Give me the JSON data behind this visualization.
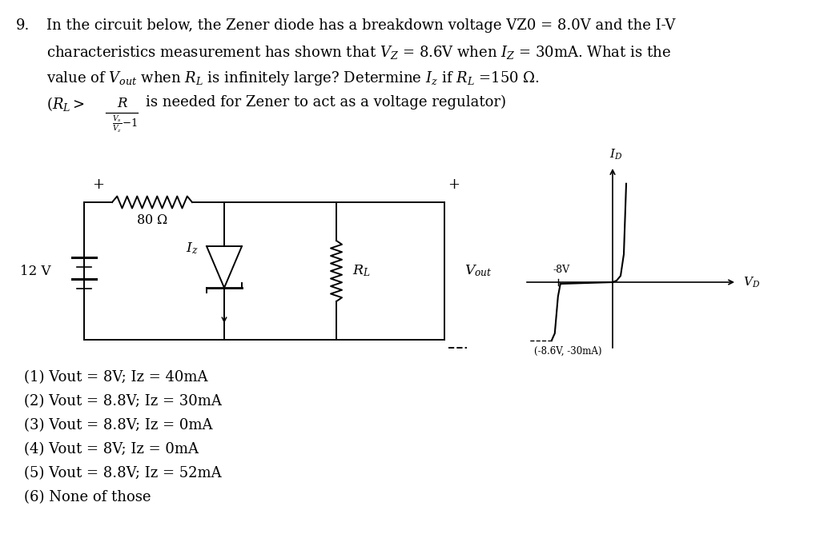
{
  "bg_color": "#ffffff",
  "fig_width": 10.24,
  "fig_height": 6.83,
  "answers": [
    "(1) Vout = 8V; Iz = 40mA",
    "(2) Vout = 8.8V; Iz = 30mA",
    "(3) Vout = 8.8V; Iz = 0mA",
    "(4) Vout = 8V; Iz = 0mA",
    "(5) Vout = 8.8V; Iz = 52mA",
    "(6) None of those"
  ],
  "text_line1": "9.   In the circuit below, the Zener diode has a breakdown voltage VZ0 = 8.0V and the I-V",
  "text_line2": "     characteristics measurement has shown that $V_Z$ = 8.6V when $I_Z$ = 30mA. What is the",
  "text_line3": "     value of $V_{out}$ when $R_L$ is infinitely large? Determine $I_z$ if $R_L$ =150 $\\Omega$.",
  "text_line4a": "     $( R_L >$",
  "text_line4b": "     is needed for Zener to act as a voltage regulator)",
  "circuit_label_12v": "12 V",
  "circuit_label_80": "80 $\\Omega$",
  "circuit_label_iz": "$I_z$",
  "circuit_label_rl": "$R_L$",
  "circuit_label_vout": "$V_{out}$",
  "graph_label_id": "$I_D$",
  "graph_label_vd": "$V_D$",
  "graph_label_8v": "-8V",
  "graph_label_pt": "(-8.6V, -30mA)"
}
